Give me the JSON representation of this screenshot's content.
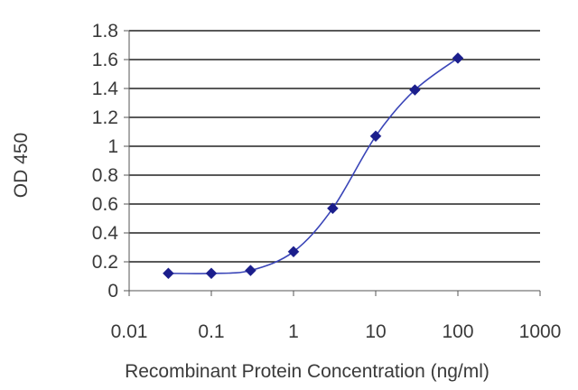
{
  "chart_data": {
    "type": "line",
    "title": "",
    "xlabel": "Recombinant Protein Concentration (ng/ml)",
    "ylabel": "OD 450",
    "x_scale": "log",
    "xlim": [
      0.01,
      1000
    ],
    "ylim": [
      0,
      1.8
    ],
    "x_ticks": [
      {
        "value": 0.01,
        "label": "0.01"
      },
      {
        "value": 0.1,
        "label": "0.1"
      },
      {
        "value": 1,
        "label": "1"
      },
      {
        "value": 10,
        "label": "10"
      },
      {
        "value": 100,
        "label": "100"
      },
      {
        "value": 1000,
        "label": "1000"
      }
    ],
    "y_ticks": [
      {
        "value": 0,
        "label": "0"
      },
      {
        "value": 0.2,
        "label": "0.2"
      },
      {
        "value": 0.4,
        "label": "0.4"
      },
      {
        "value": 0.6,
        "label": "0.6"
      },
      {
        "value": 0.8,
        "label": "0.8"
      },
      {
        "value": 1.0,
        "label": "1"
      },
      {
        "value": 1.2,
        "label": "1.2"
      },
      {
        "value": 1.4,
        "label": "1.4"
      },
      {
        "value": 1.6,
        "label": "1.6"
      },
      {
        "value": 1.8,
        "label": "1.8"
      }
    ],
    "grid": "horizontal",
    "series": [
      {
        "x": [
          0.03,
          0.1,
          0.3,
          1,
          3,
          10,
          30,
          100
        ],
        "y": [
          0.12,
          0.12,
          0.14,
          0.27,
          0.57,
          1.07,
          1.39,
          1.61
        ],
        "marker": "diamond",
        "color": "#1b1e8c"
      }
    ],
    "colors": {
      "line": "#3a45b8",
      "marker": "#1b1e8c",
      "grid": "#222222",
      "axis": "#555555"
    }
  }
}
